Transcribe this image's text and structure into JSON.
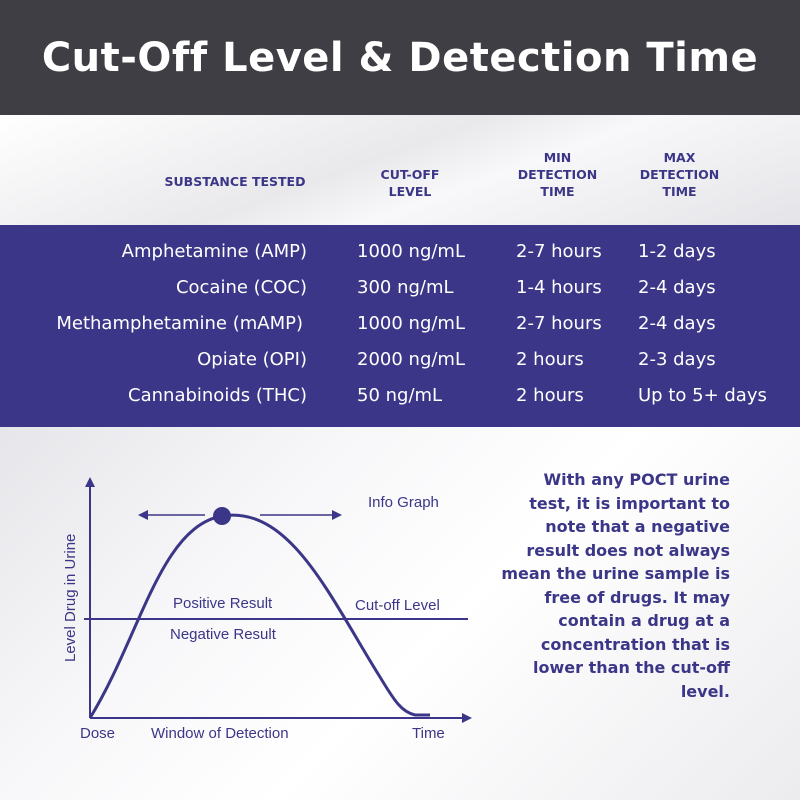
{
  "title": "Cut-Off Level & Detection Time",
  "table": {
    "headers": {
      "substance": "SUBSTANCE TESTED",
      "cutoff": "CUT-OFF\nLEVEL",
      "min": "MIN\nDETECTION\nTIME",
      "max": "MAX\nDETECTION\nTIME"
    },
    "rows": [
      {
        "substance": "Amphetamine (AMP)",
        "cutoff": "1000 ng/mL",
        "min": "2-7 hours",
        "max": "1-2 days"
      },
      {
        "substance": "Cocaine (COC)",
        "cutoff": "300 ng/mL",
        "min": "1-4 hours",
        "max": "2-4 days"
      },
      {
        "substance": "Methamphetamine (mAMP)",
        "cutoff": "1000 ng/mL",
        "min": "2-7 hours",
        "max": "2-4 days"
      },
      {
        "substance": "Opiate (OPI)",
        "cutoff": "2000 ng/mL",
        "min": "2 hours",
        "max": "2-3 days"
      },
      {
        "substance": "Cannabinoids (THC)",
        "cutoff": "50 ng/mL",
        "min": "2 hours",
        "max": "Up to 5+ days"
      }
    ]
  },
  "graph": {
    "info_label": "Info Graph",
    "y_axis_label": "Level Drug in Urine",
    "positive_label": "Positive Result",
    "negative_label": "Negative Result",
    "cutoff_label": "Cut-off Level",
    "dose_label": "Dose",
    "window_label": "Window of Detection",
    "time_label": "Time"
  },
  "note": "With any POCT urine test, it is important to note that a negative result does not always mean the urine sample is free of drugs. It may contain a drug at a concentration that is lower than the cut-off level.",
  "colors": {
    "header_bg": "#3f3e44",
    "accent": "#3b3687",
    "text_light": "#ffffff"
  }
}
